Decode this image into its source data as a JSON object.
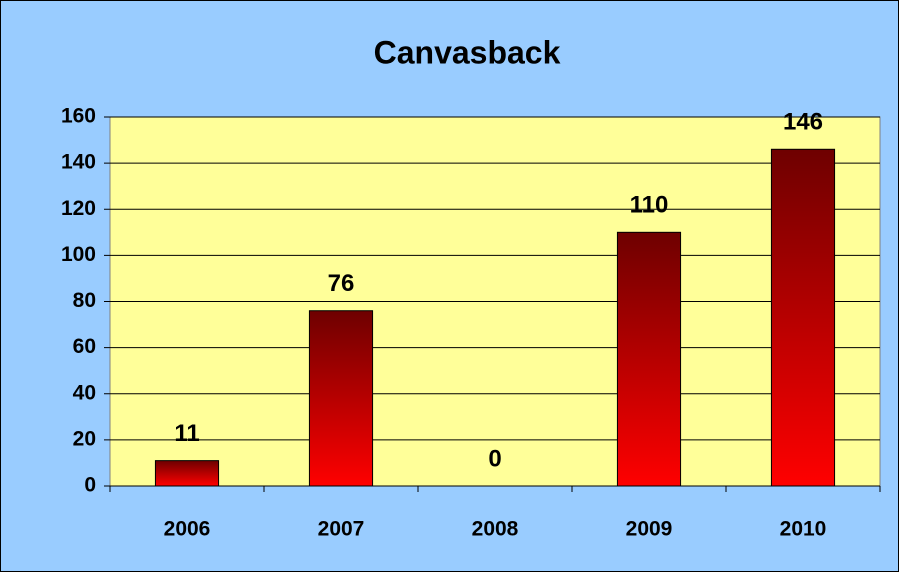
{
  "chart_data": {
    "type": "bar",
    "title": "Canvasback",
    "categories": [
      "2006",
      "2007",
      "2008",
      "2009",
      "2010"
    ],
    "values": [
      11,
      76,
      0,
      110,
      146
    ],
    "color": "#ff0000",
    "color_top": "#6e0000",
    "ylim": [
      0,
      160
    ],
    "yticks": [
      0,
      20,
      40,
      60,
      80,
      100,
      120,
      140,
      160
    ],
    "grid": true
  }
}
